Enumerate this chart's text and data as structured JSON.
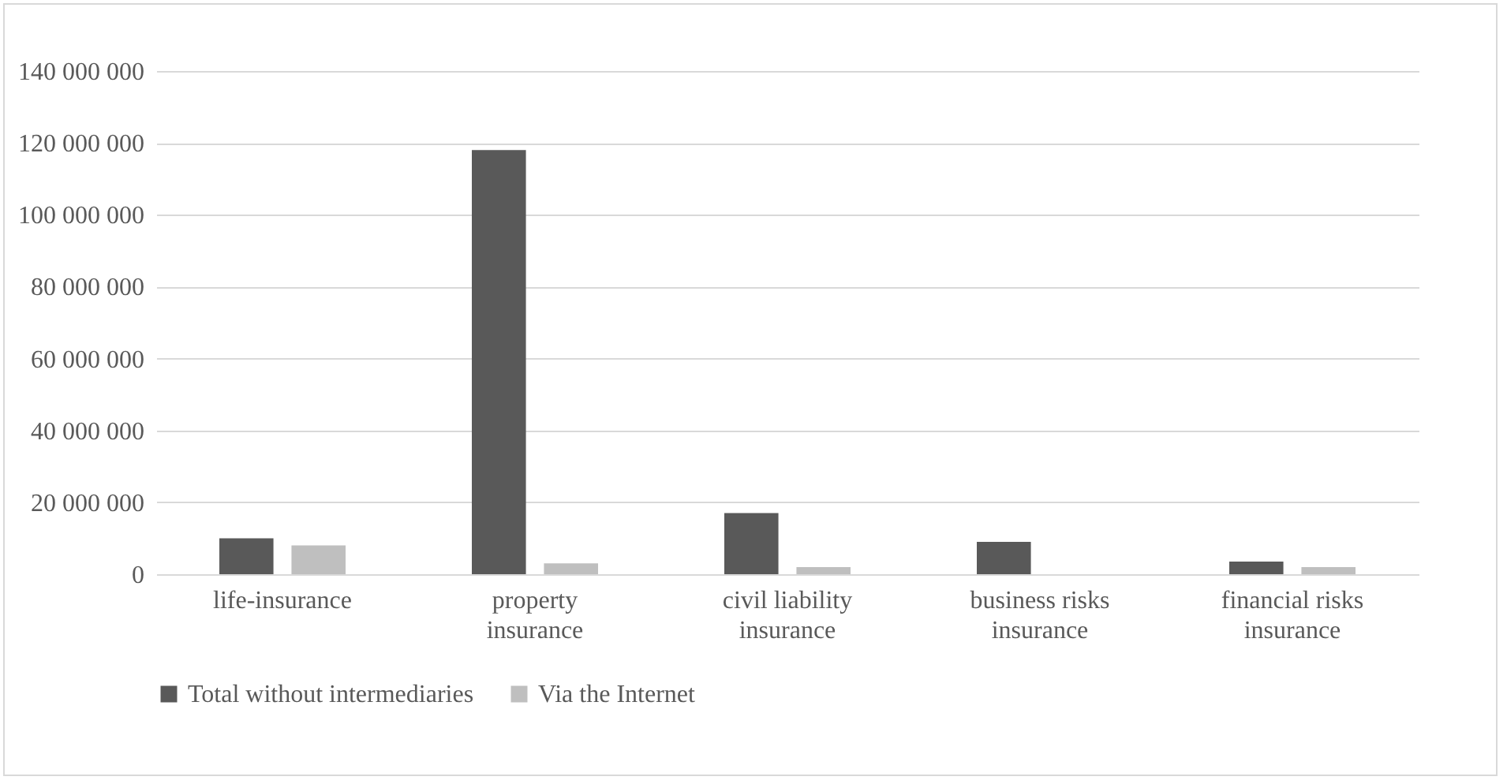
{
  "chart_data": {
    "type": "bar",
    "categories": [
      "life-insurance",
      "property insurance",
      "civil liability insurance",
      "business risks insurance",
      "financial risks insurance"
    ],
    "series": [
      {
        "name": "Total without intermediaries",
        "color": "#595959",
        "values": [
          10000000,
          118000000,
          17000000,
          9000000,
          3500000
        ]
      },
      {
        "name": "Via the Internet",
        "color": "#bfbfbf",
        "values": [
          8000000,
          3000000,
          2000000,
          0,
          2000000
        ]
      }
    ],
    "ylim": [
      0,
      140000000
    ],
    "yticks": [
      {
        "value": 0,
        "label": "0"
      },
      {
        "value": 20000000,
        "label": "20 000 000"
      },
      {
        "value": 40000000,
        "label": "40 000 000"
      },
      {
        "value": 60000000,
        "label": "60 000 000"
      },
      {
        "value": 80000000,
        "label": "80 000 000"
      },
      {
        "value": 100000000,
        "label": "100 000 000"
      },
      {
        "value": 120000000,
        "label": "120 000 000"
      },
      {
        "value": 140000000,
        "label": "140 000 000"
      }
    ],
    "grid": "y",
    "legend": "bottom"
  }
}
